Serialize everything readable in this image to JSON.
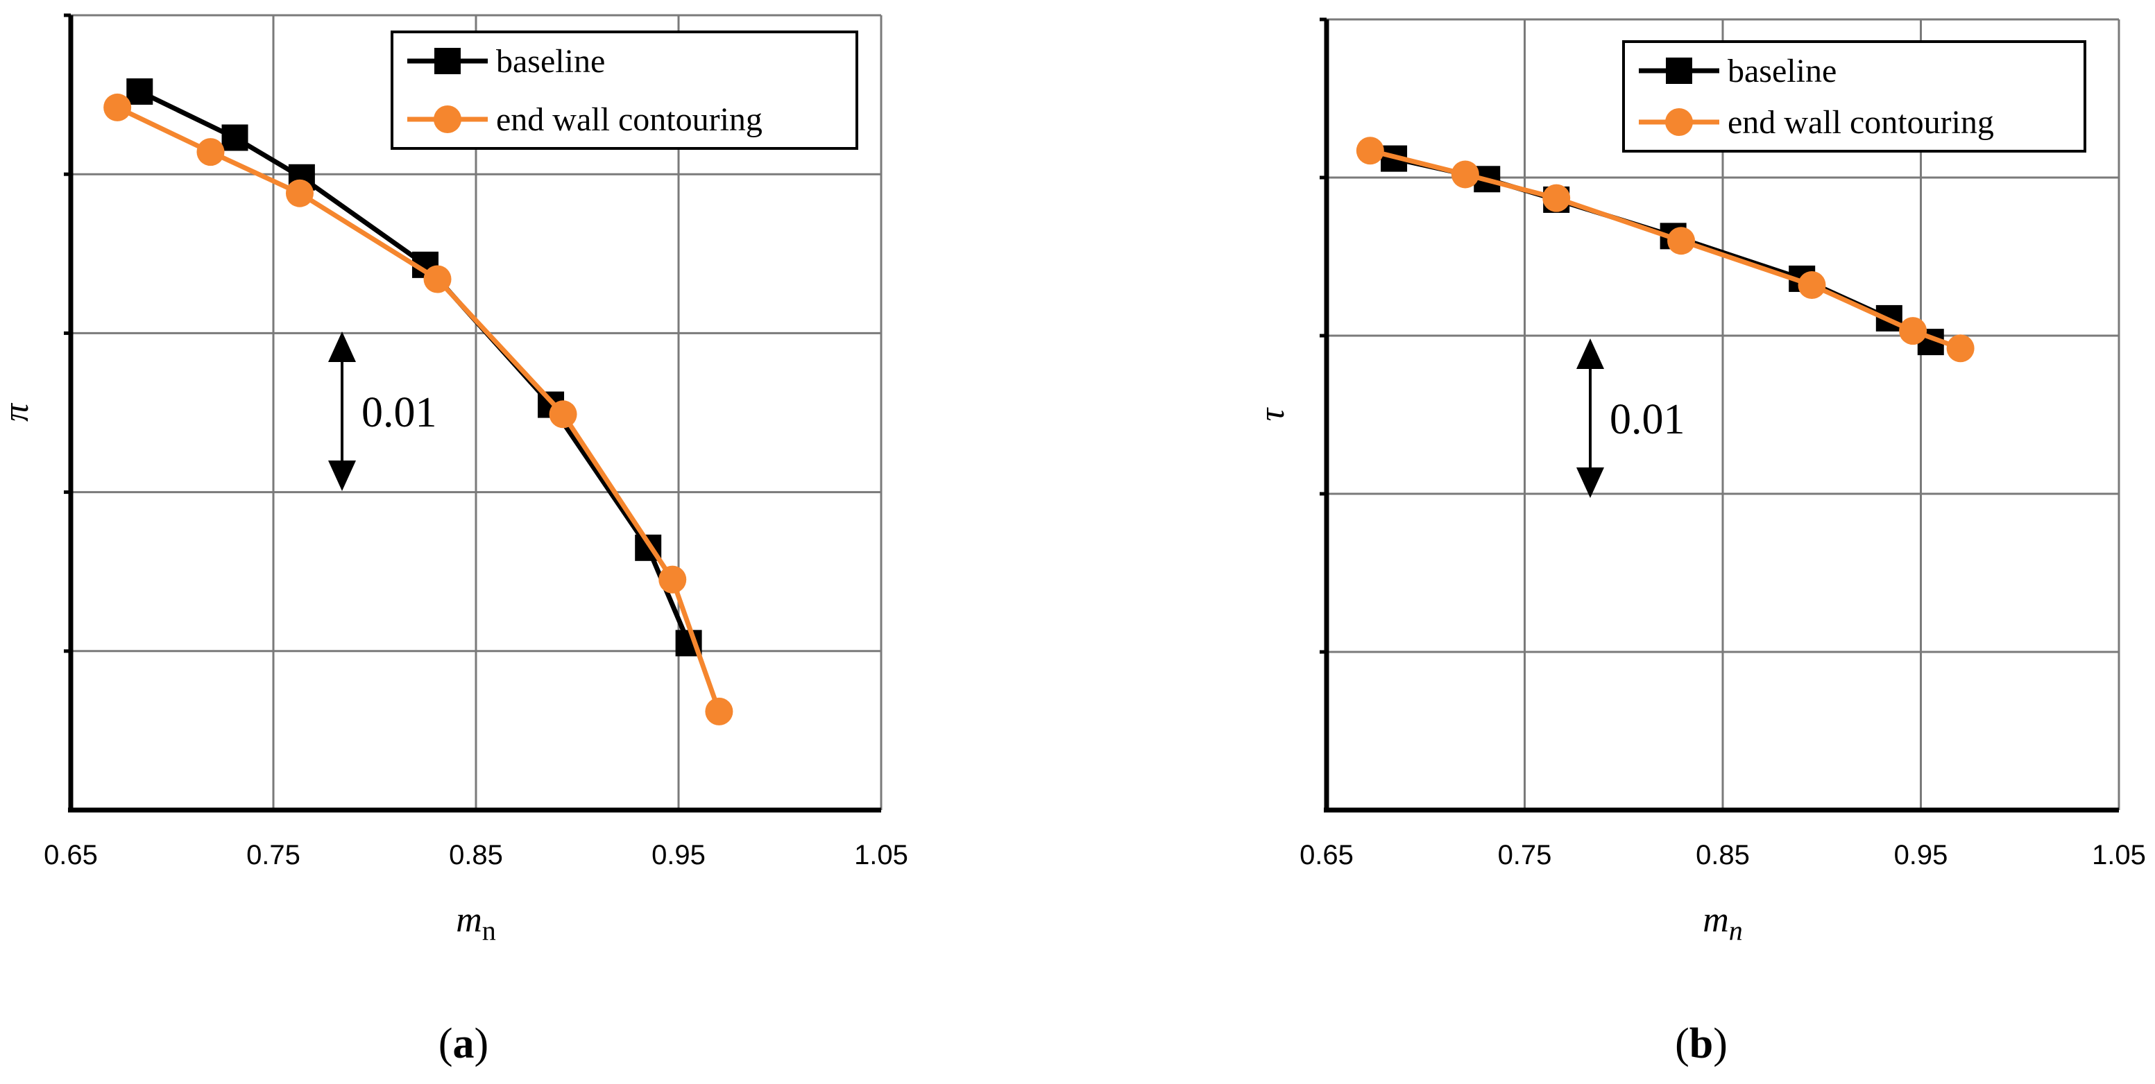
{
  "chart_data": [
    {
      "type": "line",
      "panel": "a",
      "caption": {
        "open": "(",
        "letter": "a",
        "close": ")"
      },
      "xlabel": {
        "main": "m",
        "sub": "n"
      },
      "ylabel": "π",
      "xlim": [
        0.65,
        1.05
      ],
      "xticks": [
        "0.65",
        "0.75",
        "0.85",
        "0.95",
        "1.05"
      ],
      "ytick_count": 6,
      "grid": true,
      "legend": "top-right",
      "annotation": {
        "label": "0.01",
        "span": 1
      },
      "series": [
        {
          "name": "baseline",
          "color": "#000000",
          "marker": "square",
          "x": [
            0.684,
            0.731,
            0.764,
            0.825,
            0.887,
            0.935,
            0.955
          ],
          "y": [
            4.52,
            4.23,
            3.98,
            3.43,
            2.55,
            1.65,
            1.05
          ]
        },
        {
          "name": "end wall contouring",
          "color": "#F5862E",
          "marker": "circle",
          "x": [
            0.673,
            0.719,
            0.763,
            0.831,
            0.893,
            0.947,
            0.97
          ],
          "y": [
            4.42,
            4.14,
            3.88,
            3.34,
            2.49,
            1.45,
            0.62
          ]
        }
      ]
    },
    {
      "type": "line",
      "panel": "b",
      "caption": {
        "open": "(",
        "letter": "b",
        "close": ")"
      },
      "xlabel": {
        "main": "m",
        "sub": "n"
      },
      "ylabel": "τ",
      "xlim": [
        0.65,
        1.05
      ],
      "xticks": [
        "0.65",
        "0.75",
        "0.85",
        "0.95",
        "1.05"
      ],
      "ytick_count": 6,
      "grid": true,
      "legend": "top-right",
      "annotation": {
        "label": "0.01",
        "span": 1
      },
      "series": [
        {
          "name": "baseline",
          "color": "#000000",
          "marker": "square",
          "x": [
            0.684,
            0.731,
            0.766,
            0.825,
            0.89,
            0.934,
            0.955
          ],
          "y": [
            4.12,
            3.99,
            3.86,
            3.63,
            3.36,
            3.11,
            2.96
          ]
        },
        {
          "name": "end wall contouring",
          "color": "#F5862E",
          "marker": "circle",
          "x": [
            0.672,
            0.72,
            0.766,
            0.829,
            0.895,
            0.946,
            0.97
          ],
          "y": [
            4.17,
            4.02,
            3.87,
            3.6,
            3.32,
            3.03,
            2.92
          ]
        }
      ]
    }
  ]
}
